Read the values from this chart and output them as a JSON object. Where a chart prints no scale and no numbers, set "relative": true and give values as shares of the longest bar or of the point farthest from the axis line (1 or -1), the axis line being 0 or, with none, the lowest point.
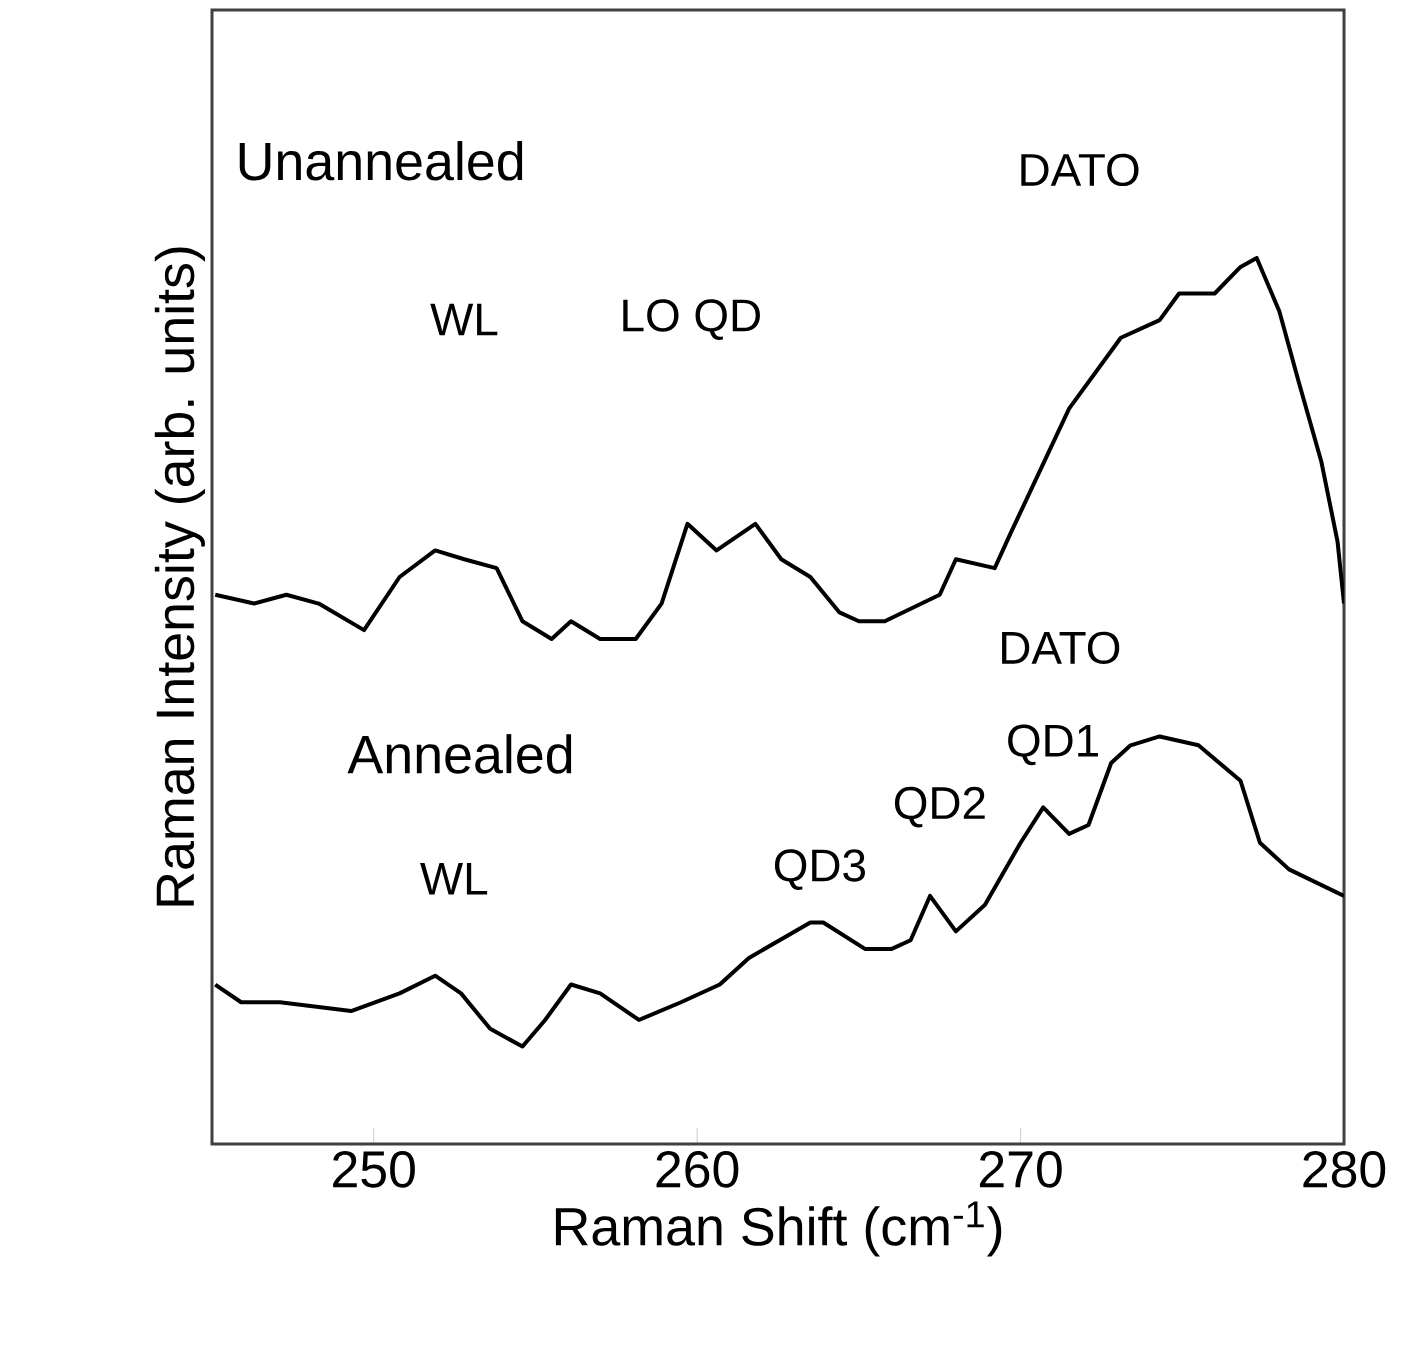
{
  "chart_data": {
    "type": "line",
    "relative": true,
    "xlabel": "Raman Shift (cm$^{-1}$)",
    "ylabel": "Raman Intensity (arb. units)",
    "xlim": [
      245,
      280
    ],
    "xticks": [
      250,
      260,
      270,
      280
    ],
    "line_style": "solid",
    "grid": false,
    "series": [
      {
        "color": "#000000",
        "x": [
          245.1,
          246.3,
          247.3,
          248.3,
          249.7,
          250.8,
          251.9,
          252.8,
          253.8,
          254.6,
          255.5,
          256.1,
          257.0,
          258.1,
          258.9,
          259.7,
          260.6,
          261.8,
          262.6,
          263.5,
          264.4,
          265.0,
          265.8,
          267.5,
          268.0,
          269.2,
          269.7,
          270.6,
          271.5,
          272.5,
          273.1,
          274.3,
          274.9,
          276.0,
          276.8,
          277.3,
          278.0,
          278.6,
          279.3,
          279.8,
          280.0
        ],
        "values": [
          0.62,
          0.61,
          0.62,
          0.61,
          0.58,
          0.64,
          0.67,
          0.66,
          0.65,
          0.59,
          0.57,
          0.59,
          0.57,
          0.57,
          0.61,
          0.7,
          0.67,
          0.7,
          0.66,
          0.64,
          0.6,
          0.59,
          0.59,
          0.62,
          0.66,
          0.65,
          0.69,
          0.76,
          0.83,
          0.88,
          0.91,
          0.93,
          0.96,
          0.96,
          0.99,
          1.0,
          0.94,
          0.86,
          0.77,
          0.68,
          0.61
        ]
      },
      {
        "color": "#000000",
        "x": [
          245.1,
          245.9,
          247.1,
          249.3,
          250.8,
          251.9,
          252.7,
          253.6,
          254.6,
          255.3,
          256.1,
          257.0,
          258.2,
          259.5,
          260.7,
          261.6,
          263.5,
          263.9,
          265.2,
          266.0,
          266.6,
          267.2,
          268.0,
          268.9,
          270.0,
          270.7,
          271.5,
          272.1,
          272.8,
          273.4,
          274.3,
          275.5,
          276.8,
          277.4,
          278.3,
          280.0
        ],
        "values": [
          0.18,
          0.16,
          0.16,
          0.15,
          0.17,
          0.19,
          0.17,
          0.13,
          0.11,
          0.14,
          0.18,
          0.17,
          0.14,
          0.16,
          0.18,
          0.21,
          0.25,
          0.25,
          0.22,
          0.22,
          0.23,
          0.28,
          0.24,
          0.27,
          0.34,
          0.38,
          0.35,
          0.36,
          0.43,
          0.45,
          0.46,
          0.45,
          0.41,
          0.34,
          0.31,
          0.28
        ]
      }
    ],
    "annotations": [
      "Unannealed",
      "DATO",
      "WL",
      "LO QD",
      "DATO",
      "Annealed",
      "QD1",
      "QD2",
      "QD3",
      "WL"
    ]
  }
}
